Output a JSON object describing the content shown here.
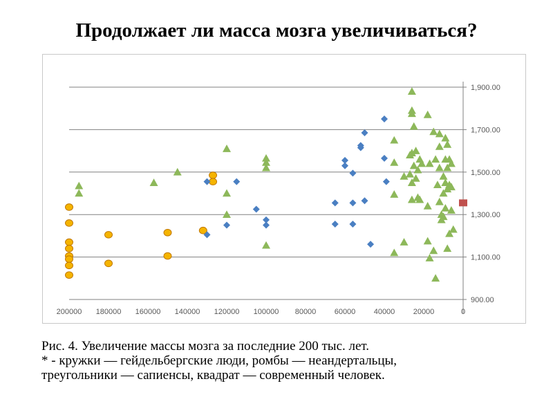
{
  "title": "Продолжает ли масса мозга увеличиваться?",
  "caption": {
    "line1": "Рис. 4. Увеличение массы мозга за последние 200 тыс. лет.",
    "line2": "* - кружки — гейдельбергские люди, ромбы — неандертальцы,",
    "line3": "треугольники — сапиенсы, квадрат — современный человек."
  },
  "chart_data": {
    "type": "scatter",
    "title": "",
    "xlabel": "",
    "ylabel": "",
    "x_reversed": true,
    "xlim": [
      0,
      200000
    ],
    "ylim": [
      900,
      1900
    ],
    "grid": "horizontal",
    "y_axis_side": "right",
    "x_ticks": [
      "200000",
      "180000",
      "160000",
      "140000",
      "120000",
      "100000",
      "80000",
      "60000",
      "40000",
      "20000",
      "0"
    ],
    "y_ticks": [
      "900.00",
      "1,100.00",
      "1,300.00",
      "1,500.00",
      "1,700.00",
      "1,900.00"
    ],
    "colors": {
      "circle": "#F5B400",
      "circle_edge": "#C07800",
      "diamond": "#4A7FC2",
      "triangle": "#8DB85A",
      "square": "#C0504D",
      "grid": "#808080",
      "frame": "#C8C8C8"
    },
    "series": [
      {
        "marker": "circle",
        "points": [
          [
            200000,
            1335
          ],
          [
            200000,
            1260
          ],
          [
            200000,
            1170
          ],
          [
            200000,
            1140
          ],
          [
            200000,
            1105
          ],
          [
            200000,
            1090
          ],
          [
            200000,
            1060
          ],
          [
            200000,
            1015
          ],
          [
            180000,
            1205
          ],
          [
            180000,
            1070
          ],
          [
            150000,
            1215
          ],
          [
            150000,
            1105
          ],
          [
            132000,
            1225
          ],
          [
            127000,
            1485
          ],
          [
            127000,
            1455
          ]
        ]
      },
      {
        "marker": "diamond",
        "points": [
          [
            130000,
            1455
          ],
          [
            130000,
            1205
          ],
          [
            120000,
            1250
          ],
          [
            115000,
            1455
          ],
          [
            105000,
            1325
          ],
          [
            100000,
            1275
          ],
          [
            100000,
            1250
          ],
          [
            65000,
            1355
          ],
          [
            65000,
            1255
          ],
          [
            60000,
            1555
          ],
          [
            60000,
            1530
          ],
          [
            56000,
            1495
          ],
          [
            56000,
            1355
          ],
          [
            56000,
            1255
          ],
          [
            52000,
            1625
          ],
          [
            52000,
            1615
          ],
          [
            50000,
            1685
          ],
          [
            50000,
            1365
          ],
          [
            47000,
            1160
          ],
          [
            40000,
            1750
          ],
          [
            40000,
            1565
          ],
          [
            39000,
            1455
          ]
        ]
      },
      {
        "marker": "triangle",
        "points": [
          [
            195000,
            1435
          ],
          [
            195000,
            1400
          ],
          [
            157000,
            1450
          ],
          [
            145000,
            1500
          ],
          [
            120000,
            1610
          ],
          [
            120000,
            1400
          ],
          [
            120000,
            1300
          ],
          [
            100000,
            1565
          ],
          [
            100000,
            1545
          ],
          [
            100000,
            1520
          ],
          [
            100000,
            1155
          ],
          [
            35000,
            1650
          ],
          [
            35000,
            1545
          ],
          [
            35000,
            1395
          ],
          [
            35000,
            1120
          ],
          [
            30000,
            1480
          ],
          [
            30000,
            1170
          ],
          [
            26000,
            1880
          ],
          [
            26000,
            1790
          ],
          [
            26000,
            1775
          ],
          [
            25000,
            1715
          ],
          [
            26000,
            1590
          ],
          [
            24000,
            1600
          ],
          [
            27000,
            1580
          ],
          [
            25000,
            1530
          ],
          [
            23000,
            1510
          ],
          [
            27000,
            1490
          ],
          [
            24000,
            1470
          ],
          [
            26000,
            1450
          ],
          [
            22000,
            1560
          ],
          [
            21000,
            1540
          ],
          [
            23000,
            1380
          ],
          [
            26000,
            1370
          ],
          [
            22000,
            1370
          ],
          [
            18000,
            1770
          ],
          [
            18000,
            1340
          ],
          [
            18000,
            1175
          ],
          [
            15000,
            1690
          ],
          [
            17000,
            1540
          ],
          [
            14000,
            1560
          ],
          [
            12000,
            1620
          ],
          [
            12000,
            1520
          ],
          [
            13000,
            1440
          ],
          [
            12000,
            1360
          ],
          [
            11000,
            1300
          ],
          [
            10000,
            1290
          ],
          [
            11000,
            1275
          ],
          [
            15000,
            1130
          ],
          [
            17000,
            1095
          ],
          [
            12000,
            1680
          ],
          [
            9000,
            1660
          ],
          [
            8000,
            1630
          ],
          [
            9000,
            1560
          ],
          [
            7000,
            1560
          ],
          [
            6000,
            1540
          ],
          [
            8000,
            1520
          ],
          [
            10000,
            1480
          ],
          [
            9000,
            1450
          ],
          [
            7000,
            1440
          ],
          [
            10000,
            1400
          ],
          [
            8000,
            1420
          ],
          [
            6000,
            1430
          ],
          [
            9000,
            1330
          ],
          [
            6000,
            1320
          ],
          [
            5000,
            1230
          ],
          [
            7000,
            1210
          ],
          [
            8000,
            1140
          ],
          [
            14000,
            1000
          ]
        ]
      },
      {
        "marker": "square",
        "points": [
          [
            0,
            1355
          ]
        ]
      }
    ]
  }
}
